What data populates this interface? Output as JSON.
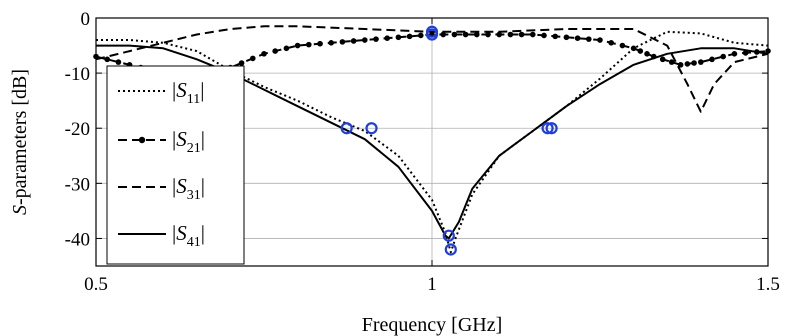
{
  "chart_data": {
    "type": "line",
    "xlabel": "Frequency [GHz]",
    "ylabel_prefix": "S",
    "ylabel_suffix": "-parameters [dB]",
    "xlim": [
      0.5,
      1.5
    ],
    "ylim": [
      -45,
      0
    ],
    "xticks": [
      0.5,
      1,
      1.5
    ],
    "xtick_labels": [
      "0.5",
      "1",
      "1.5"
    ],
    "yticks": [
      0,
      -10,
      -20,
      -30,
      -40
    ],
    "ytick_labels": [
      "0",
      "-10",
      "-20",
      "-30",
      "-40"
    ],
    "grid": true,
    "legend_position": "left",
    "series": [
      {
        "name": "|S11|",
        "legend_label": "S",
        "legend_sub": "11",
        "style": "dotted",
        "x": [
          0.5,
          0.55,
          0.6,
          0.65,
          0.7,
          0.75,
          0.8,
          0.85,
          0.9,
          0.95,
          1.0,
          1.02,
          1.028,
          1.035,
          1.06,
          1.1,
          1.15,
          1.2,
          1.25,
          1.3,
          1.35,
          1.4,
          1.45,
          1.5
        ],
        "y": [
          -4,
          -4,
          -4.5,
          -6,
          -9.5,
          -12.5,
          -15,
          -18,
          -20.5,
          -25,
          -33,
          -39,
          -42.5,
          -40,
          -32,
          -25,
          -20.5,
          -16,
          -11,
          -5.5,
          -2.5,
          -2.8,
          -4.5,
          -5
        ]
      },
      {
        "name": "|S21|",
        "legend_label": "S",
        "legend_sub": "21",
        "style": "dash-dot-marker",
        "x": [
          0.5,
          0.55,
          0.6,
          0.65,
          0.7,
          0.75,
          0.8,
          0.85,
          0.9,
          0.95,
          1.0,
          1.05,
          1.1,
          1.15,
          1.2,
          1.25,
          1.3,
          1.33,
          1.37,
          1.4,
          1.45,
          1.5
        ],
        "y": [
          -7,
          -8.5,
          -10,
          -10,
          -9,
          -6.5,
          -5,
          -4.5,
          -4,
          -3.5,
          -3,
          -3,
          -3,
          -3,
          -3.5,
          -4,
          -5.5,
          -7,
          -8.5,
          -8,
          -6.5,
          -6
        ]
      },
      {
        "name": "|S31|",
        "legend_label": "S",
        "legend_sub": "31",
        "style": "dashed",
        "x": [
          0.5,
          0.55,
          0.6,
          0.65,
          0.7,
          0.75,
          0.8,
          0.9,
          1.0,
          1.1,
          1.2,
          1.25,
          1.3,
          1.35,
          1.38,
          1.4,
          1.42,
          1.45,
          1.5
        ],
        "y": [
          -7.5,
          -6,
          -4.5,
          -3,
          -2,
          -1.5,
          -1.5,
          -2,
          -2.5,
          -2.5,
          -2,
          -2,
          -2,
          -5,
          -12,
          -17,
          -12,
          -8,
          -6.5
        ]
      },
      {
        "name": "|S41|",
        "legend_label": "S",
        "legend_sub": "41",
        "style": "solid",
        "x": [
          0.5,
          0.55,
          0.6,
          0.65,
          0.7,
          0.75,
          0.8,
          0.85,
          0.9,
          0.95,
          1.0,
          1.02,
          1.025,
          1.04,
          1.06,
          1.1,
          1.15,
          1.2,
          1.25,
          1.3,
          1.35,
          1.4,
          1.45,
          1.5
        ],
        "y": [
          -5,
          -5,
          -5.5,
          -7.5,
          -10,
          -13,
          -16,
          -19,
          -22,
          -27,
          -35,
          -39.5,
          -40,
          -37,
          -31,
          -25,
          -20.5,
          -16,
          -12,
          -8.5,
          -6.5,
          -5.5,
          -5.5,
          -6.5
        ]
      }
    ],
    "markers": {
      "style": "blue-circle",
      "color": "#1f3fdc",
      "points": [
        {
          "x": 0.873,
          "y": -20
        },
        {
          "x": 0.91,
          "y": -20
        },
        {
          "x": 1.0,
          "y": -3
        },
        {
          "x": 1.0,
          "y": -2.5
        },
        {
          "x": 1.025,
          "y": -39.5
        },
        {
          "x": 1.028,
          "y": -42
        },
        {
          "x": 1.172,
          "y": -20
        },
        {
          "x": 1.178,
          "y": -20
        }
      ]
    }
  }
}
